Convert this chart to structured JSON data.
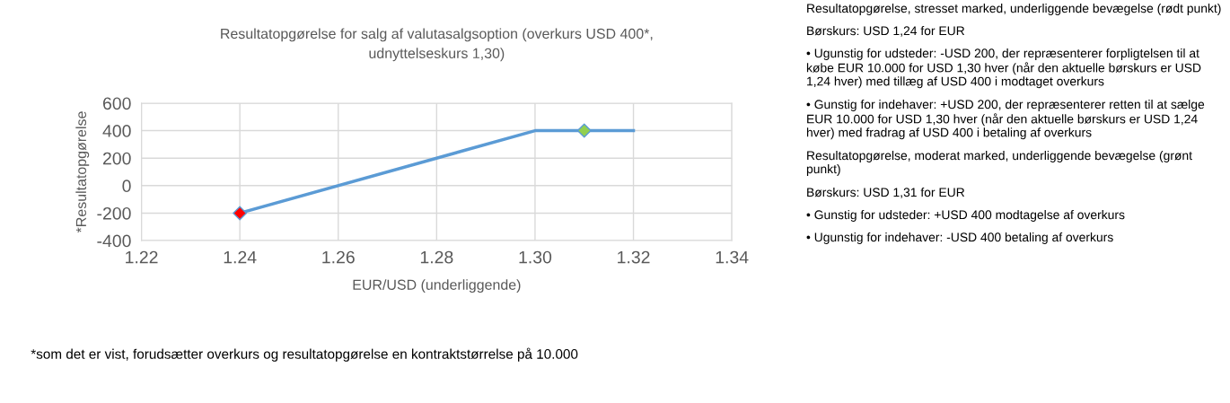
{
  "chart_data": {
    "type": "line",
    "title": "Resultatopgørelse for salg af valutasalgsoption (overkurs USD 400*,\nudnyttelseskurs 1,30)",
    "xlabel": "EUR/USD (underliggende)",
    "ylabel": "*Resultatopgørelse",
    "series": [
      {
        "color": "#5b9bd5",
        "x": [
          1.24,
          1.3,
          1.32
        ],
        "values": [
          -200,
          400,
          400
        ],
        "marker": "none"
      },
      {
        "type": "scatter",
        "colors": [
          "#ff0000",
          "#92d050"
        ],
        "x": [
          1.24,
          1.31
        ],
        "values": [
          -200,
          400
        ],
        "marker": "diamond"
      }
    ],
    "xlim": [
      1.22,
      1.34
    ],
    "xticks": [
      1.22,
      1.24,
      1.26,
      1.28,
      {
        "value": 1.3,
        "label": "1.30"
      },
      1.32,
      1.34
    ],
    "ylim": [
      -400,
      600
    ],
    "yticks": [
      -400,
      -200,
      0,
      200,
      400,
      600
    ],
    "grid": true,
    "annotations": [
      "*som det er vist, forudsætter overkurs og resultatopgørelse en kontraktstørrelse på 10.000",
      "Resultatopgørelse, stresset marked, underliggende bevægelse (rødt punkt)",
      "Børskurs: USD 1,24 for EUR",
      "• Ugunstig for udsteder: -USD 200, der repræsenterer forpligtelsen til at købe EUR 10.000 for USD 1,30 hver (når den aktuelle børskurs er USD 1,24 hver) med tillæg af USD 400 i modtaget overkurs",
      "• Gunstig for indehaver: +USD 200, der repræsenterer retten til at sælge EUR 10.000 for USD 1,30 hver (når den aktuelle børskurs er USD 1,24 hver) med fradrag af USD 400 i betaling af overkurs",
      "Resultatopgørelse, moderat marked, underliggende bevægelse (grønt punkt)",
      "Børskurs: USD 1,31 for EUR",
      "• Gunstig for udsteder: +USD 400 modtagelse af overkurs",
      "• Ugunstig for indehaver: -USD 400 betaling af overkurs"
    ]
  }
}
